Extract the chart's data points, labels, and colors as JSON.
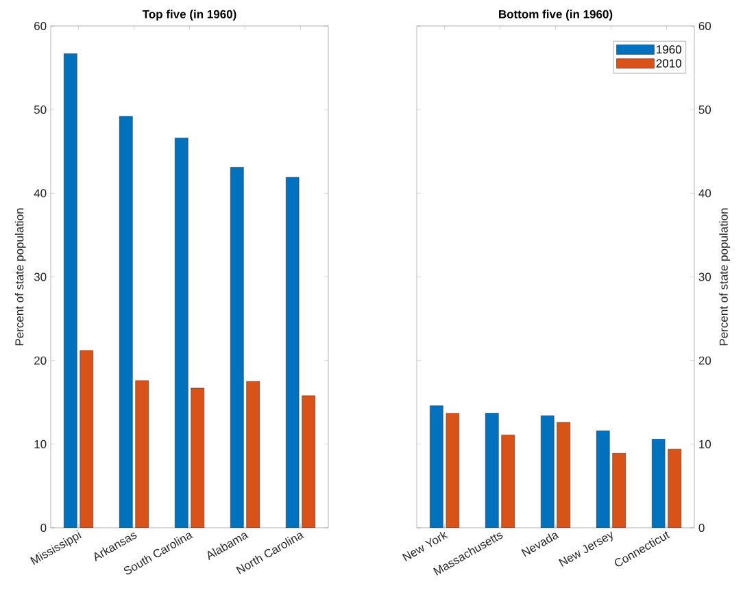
{
  "chart_data": [
    {
      "type": "bar",
      "title": "Top five (in 1960)",
      "ylabel": "Percent of state population",
      "categories": [
        "Mississippi",
        "Arkansas",
        "South Carolina",
        "Alabama",
        "North Carolina"
      ],
      "ylim": [
        0,
        60
      ],
      "yticks": [
        0,
        10,
        20,
        30,
        40,
        50,
        60
      ],
      "series": [
        {
          "color": "#0072bd",
          "values": [
            56.7,
            49.2,
            46.6,
            43.1,
            41.9
          ]
        },
        {
          "color": "#d95319",
          "values": [
            21.2,
            17.6,
            16.7,
            17.5,
            15.8
          ]
        }
      ]
    },
    {
      "type": "bar",
      "title": "Bottom five (in 1960)",
      "ylabel": "Percent of state population",
      "categories": [
        "New York",
        "Massachusetts",
        "Nevada",
        "New Jersey",
        "Connecticut"
      ],
      "ylim": [
        0,
        60
      ],
      "yticks": [
        0,
        10,
        20,
        30,
        40,
        50,
        60
      ],
      "legend": "top right",
      "series": [
        {
          "name": "1960",
          "color": "#0072bd",
          "values": [
            14.6,
            13.7,
            13.4,
            11.6,
            10.6
          ]
        },
        {
          "name": "2010",
          "color": "#d95319",
          "values": [
            13.7,
            11.1,
            12.6,
            8.9,
            9.4
          ]
        }
      ]
    }
  ]
}
